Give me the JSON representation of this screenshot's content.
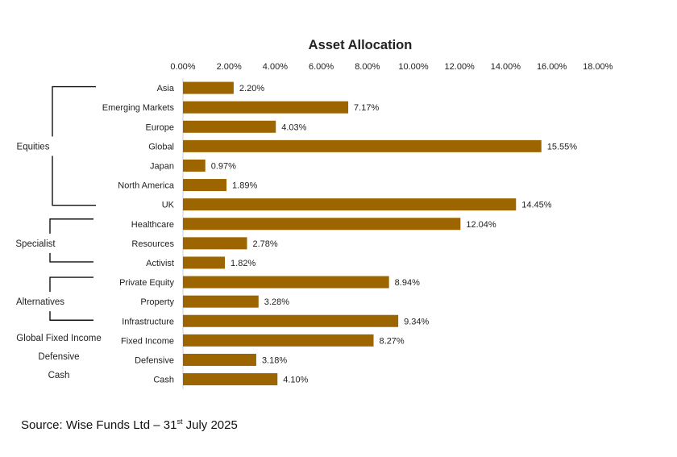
{
  "chart_data": {
    "type": "bar",
    "orientation": "horizontal",
    "title": "Asset Allocation",
    "xlim": [
      0,
      18
    ],
    "tick_values": [
      0,
      2,
      4,
      6,
      8,
      10,
      12,
      14,
      16,
      18
    ],
    "tick_labels": [
      "0.00%",
      "2.00%",
      "4.00%",
      "6.00%",
      "8.00%",
      "10.00%",
      "12.00%",
      "14.00%",
      "16.00%",
      "18.00%"
    ],
    "x_axis_position": "top",
    "gridlines": false,
    "legend": "none",
    "bar_color": "#9C6500",
    "categories": [
      "Asia",
      "Emerging Markets",
      "Europe",
      "Global",
      "Japan",
      "North America",
      "UK",
      "Healthcare",
      "Resources",
      "Activist",
      "Private Equity",
      "Property",
      "Infrastructure",
      "Fixed Income",
      "Defensive",
      "Cash"
    ],
    "values": [
      2.2,
      7.17,
      4.03,
      15.55,
      0.97,
      1.89,
      14.45,
      12.04,
      2.78,
      1.82,
      8.94,
      3.28,
      9.34,
      8.27,
      3.18,
      4.1
    ],
    "data_labels": [
      "2.20%",
      "7.17%",
      "4.03%",
      "15.55%",
      "0.97%",
      "1.89%",
      "14.45%",
      "12.04%",
      "2.78%",
      "1.82%",
      "8.94%",
      "3.28%",
      "9.34%",
      "8.27%",
      "3.18%",
      "4.10%"
    ],
    "groups": [
      {
        "name": "Equities",
        "from": 0,
        "to": 6,
        "bracket": true
      },
      {
        "name": "Specialist",
        "from": 7,
        "to": 9,
        "bracket": true
      },
      {
        "name": "Alternatives",
        "from": 10,
        "to": 12,
        "bracket": true
      },
      {
        "name": "Global Fixed Income",
        "from": 13,
        "to": 13,
        "bracket": false
      },
      {
        "name": "Defensive",
        "from": 14,
        "to": 14,
        "bracket": false
      },
      {
        "name": "Cash",
        "from": 15,
        "to": 15,
        "bracket": false
      }
    ]
  },
  "source": {
    "prefix": "Source: Wise Funds Ltd – 31",
    "superscript": "st",
    "suffix": " July 2025"
  }
}
